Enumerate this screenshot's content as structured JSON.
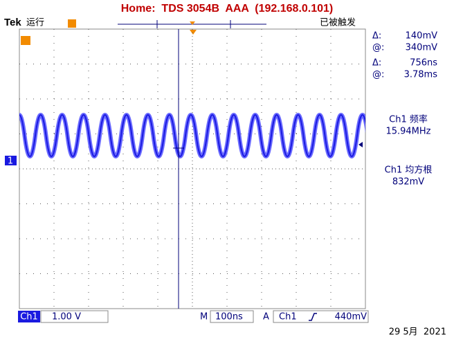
{
  "header": {
    "title": "Home:  TDS 3054B  AAA  (192.168.0.101)",
    "brand": "Tek",
    "run_state": "运行",
    "trigger_state": "已被触发"
  },
  "readouts": {
    "amplitude_delta_label": "Δ:",
    "amplitude_delta": "140mV",
    "amplitude_at_label": "@:",
    "amplitude_at": "340mV",
    "time_delta_label": "Δ:",
    "time_delta": "756ns",
    "time_at_label": "@:",
    "time_at": "3.78ms"
  },
  "measurements": [
    {
      "label": "Ch1 频率",
      "value": "15.94MHz"
    },
    {
      "label": "Ch1 均方根",
      "value": "832mV"
    }
  ],
  "channel_marker": "1",
  "footer": {
    "channel": "Ch1",
    "volts_per_div": "1.00 V",
    "time_label": "M",
    "time_per_div": "100ns",
    "trigger_label": "A",
    "trigger_source": "Ch1",
    "trigger_level": "440mV",
    "date": "29 5月  2021"
  }
}
